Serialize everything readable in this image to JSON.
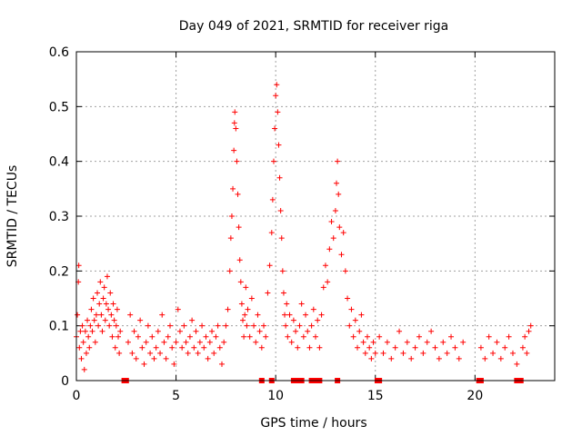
{
  "chart_data": {
    "type": "scatter",
    "title": "Day 049 of 2021, SRMTID for receiver riga",
    "xlabel": "GPS time / hours",
    "ylabel": "SRMTID / TECUs",
    "xlim": [
      0,
      24
    ],
    "ylim": [
      0,
      0.6
    ],
    "x_ticks": [
      0,
      5,
      10,
      15,
      20
    ],
    "x_tick_labels": [
      "0",
      "5",
      "10",
      "15",
      "20"
    ],
    "y_ticks": [
      0,
      0.1,
      0.2,
      0.3,
      0.4,
      0.5,
      0.6
    ],
    "y_tick_labels": [
      "0",
      "0.1",
      "0.2",
      "0.3",
      "0.4",
      "0.5",
      "0.6"
    ],
    "grid": true,
    "marker": "plus",
    "color": "#ff0000",
    "series": [
      {
        "name": "SRMTID",
        "points": [
          [
            0.0,
            0.08
          ],
          [
            0.05,
            0.12
          ],
          [
            0.1,
            0.18
          ],
          [
            0.12,
            0.21
          ],
          [
            0.15,
            0.06
          ],
          [
            0.2,
            0.09
          ],
          [
            0.25,
            0.04
          ],
          [
            0.3,
            0.1
          ],
          [
            0.35,
            0.07
          ],
          [
            0.4,
            0.02
          ],
          [
            0.45,
            0.09
          ],
          [
            0.5,
            0.05
          ],
          [
            0.55,
            0.11
          ],
          [
            0.6,
            0.08
          ],
          [
            0.65,
            0.06
          ],
          [
            0.7,
            0.1
          ],
          [
            0.75,
            0.13
          ],
          [
            0.8,
            0.09
          ],
          [
            0.85,
            0.15
          ],
          [
            0.9,
            0.11
          ],
          [
            0.95,
            0.07
          ],
          [
            1.0,
            0.12
          ],
          [
            1.05,
            0.16
          ],
          [
            1.1,
            0.1
          ],
          [
            1.15,
            0.14
          ],
          [
            1.2,
            0.18
          ],
          [
            1.25,
            0.12
          ],
          [
            1.3,
            0.09
          ],
          [
            1.35,
            0.15
          ],
          [
            1.4,
            0.17
          ],
          [
            1.45,
            0.11
          ],
          [
            1.5,
            0.14
          ],
          [
            1.55,
            0.19
          ],
          [
            1.6,
            0.13
          ],
          [
            1.65,
            0.1
          ],
          [
            1.7,
            0.16
          ],
          [
            1.75,
            0.12
          ],
          [
            1.8,
            0.08
          ],
          [
            1.85,
            0.14
          ],
          [
            1.9,
            0.11
          ],
          [
            1.95,
            0.06
          ],
          [
            2.0,
            0.1
          ],
          [
            2.05,
            0.13
          ],
          [
            2.1,
            0.08
          ],
          [
            2.15,
            0.05
          ],
          [
            2.2,
            0.09
          ],
          [
            2.6,
            0.07
          ],
          [
            2.7,
            0.12
          ],
          [
            2.8,
            0.05
          ],
          [
            2.9,
            0.09
          ],
          [
            3.0,
            0.04
          ],
          [
            3.1,
            0.08
          ],
          [
            3.2,
            0.11
          ],
          [
            3.3,
            0.06
          ],
          [
            3.4,
            0.03
          ],
          [
            3.5,
            0.07
          ],
          [
            3.6,
            0.1
          ],
          [
            3.7,
            0.05
          ],
          [
            3.8,
            0.08
          ],
          [
            3.9,
            0.04
          ],
          [
            4.0,
            0.06
          ],
          [
            4.1,
            0.09
          ],
          [
            4.2,
            0.05
          ],
          [
            4.3,
            0.12
          ],
          [
            4.4,
            0.07
          ],
          [
            4.5,
            0.04
          ],
          [
            4.6,
            0.08
          ],
          [
            4.7,
            0.1
          ],
          [
            4.8,
            0.06
          ],
          [
            4.9,
            0.03
          ],
          [
            5.0,
            0.07
          ],
          [
            5.1,
            0.13
          ],
          [
            5.2,
            0.09
          ],
          [
            5.3,
            0.06
          ],
          [
            5.4,
            0.1
          ],
          [
            5.5,
            0.07
          ],
          [
            5.6,
            0.05
          ],
          [
            5.7,
            0.08
          ],
          [
            5.8,
            0.11
          ],
          [
            5.9,
            0.06
          ],
          [
            6.0,
            0.09
          ],
          [
            6.1,
            0.05
          ],
          [
            6.2,
            0.07
          ],
          [
            6.3,
            0.1
          ],
          [
            6.4,
            0.06
          ],
          [
            6.5,
            0.08
          ],
          [
            6.6,
            0.04
          ],
          [
            6.7,
            0.07
          ],
          [
            6.8,
            0.09
          ],
          [
            6.9,
            0.05
          ],
          [
            7.0,
            0.08
          ],
          [
            7.1,
            0.1
          ],
          [
            7.2,
            0.06
          ],
          [
            7.3,
            0.03
          ],
          [
            7.4,
            0.07
          ],
          [
            7.5,
            0.1
          ],
          [
            7.6,
            0.13
          ],
          [
            7.7,
            0.2
          ],
          [
            7.75,
            0.26
          ],
          [
            7.8,
            0.3
          ],
          [
            7.85,
            0.35
          ],
          [
            7.9,
            0.42
          ],
          [
            7.93,
            0.47
          ],
          [
            7.95,
            0.49
          ],
          [
            8.0,
            0.46
          ],
          [
            8.05,
            0.4
          ],
          [
            8.1,
            0.34
          ],
          [
            8.15,
            0.28
          ],
          [
            8.2,
            0.22
          ],
          [
            8.25,
            0.18
          ],
          [
            8.3,
            0.14
          ],
          [
            8.35,
            0.11
          ],
          [
            8.4,
            0.08
          ],
          [
            8.45,
            0.12
          ],
          [
            8.5,
            0.17
          ],
          [
            8.55,
            0.1
          ],
          [
            8.6,
            0.13
          ],
          [
            8.7,
            0.08
          ],
          [
            8.8,
            0.15
          ],
          [
            8.9,
            0.1
          ],
          [
            9.0,
            0.07
          ],
          [
            9.1,
            0.12
          ],
          [
            9.2,
            0.09
          ],
          [
            9.3,
            0.06
          ],
          [
            9.4,
            0.1
          ],
          [
            9.5,
            0.08
          ],
          [
            9.6,
            0.16
          ],
          [
            9.7,
            0.21
          ],
          [
            9.8,
            0.27
          ],
          [
            9.85,
            0.33
          ],
          [
            9.9,
            0.4
          ],
          [
            9.95,
            0.46
          ],
          [
            10.0,
            0.52
          ],
          [
            10.05,
            0.54
          ],
          [
            10.1,
            0.49
          ],
          [
            10.15,
            0.43
          ],
          [
            10.2,
            0.37
          ],
          [
            10.25,
            0.31
          ],
          [
            10.3,
            0.26
          ],
          [
            10.35,
            0.2
          ],
          [
            10.4,
            0.16
          ],
          [
            10.45,
            0.12
          ],
          [
            10.5,
            0.1
          ],
          [
            10.55,
            0.14
          ],
          [
            10.6,
            0.08
          ],
          [
            10.7,
            0.12
          ],
          [
            10.8,
            0.07
          ],
          [
            10.9,
            0.11
          ],
          [
            11.0,
            0.09
          ],
          [
            11.1,
            0.06
          ],
          [
            11.2,
            0.1
          ],
          [
            11.3,
            0.14
          ],
          [
            11.4,
            0.08
          ],
          [
            11.5,
            0.12
          ],
          [
            11.6,
            0.09
          ],
          [
            11.7,
            0.06
          ],
          [
            11.8,
            0.1
          ],
          [
            11.9,
            0.13
          ],
          [
            12.0,
            0.08
          ],
          [
            12.1,
            0.11
          ],
          [
            12.2,
            0.06
          ],
          [
            12.3,
            0.12
          ],
          [
            12.4,
            0.17
          ],
          [
            12.5,
            0.21
          ],
          [
            12.6,
            0.18
          ],
          [
            12.7,
            0.24
          ],
          [
            12.8,
            0.29
          ],
          [
            12.9,
            0.26
          ],
          [
            13.0,
            0.31
          ],
          [
            13.05,
            0.36
          ],
          [
            13.1,
            0.4
          ],
          [
            13.15,
            0.34
          ],
          [
            13.2,
            0.28
          ],
          [
            13.3,
            0.23
          ],
          [
            13.4,
            0.27
          ],
          [
            13.5,
            0.2
          ],
          [
            13.6,
            0.15
          ],
          [
            13.7,
            0.1
          ],
          [
            13.8,
            0.13
          ],
          [
            13.9,
            0.08
          ],
          [
            14.0,
            0.11
          ],
          [
            14.1,
            0.06
          ],
          [
            14.2,
            0.09
          ],
          [
            14.3,
            0.12
          ],
          [
            14.4,
            0.07
          ],
          [
            14.5,
            0.05
          ],
          [
            14.6,
            0.08
          ],
          [
            14.7,
            0.06
          ],
          [
            14.8,
            0.04
          ],
          [
            14.9,
            0.07
          ],
          [
            15.0,
            0.05
          ],
          [
            15.2,
            0.08
          ],
          [
            15.4,
            0.05
          ],
          [
            15.6,
            0.07
          ],
          [
            15.8,
            0.04
          ],
          [
            16.0,
            0.06
          ],
          [
            16.2,
            0.09
          ],
          [
            16.4,
            0.05
          ],
          [
            16.6,
            0.07
          ],
          [
            16.8,
            0.04
          ],
          [
            17.0,
            0.06
          ],
          [
            17.2,
            0.08
          ],
          [
            17.4,
            0.05
          ],
          [
            17.6,
            0.07
          ],
          [
            17.8,
            0.09
          ],
          [
            18.0,
            0.06
          ],
          [
            18.2,
            0.04
          ],
          [
            18.4,
            0.07
          ],
          [
            18.6,
            0.05
          ],
          [
            18.8,
            0.08
          ],
          [
            19.0,
            0.06
          ],
          [
            19.2,
            0.04
          ],
          [
            19.4,
            0.07
          ],
          [
            20.3,
            0.06
          ],
          [
            20.5,
            0.04
          ],
          [
            20.7,
            0.08
          ],
          [
            20.9,
            0.05
          ],
          [
            21.1,
            0.07
          ],
          [
            21.3,
            0.04
          ],
          [
            21.5,
            0.06
          ],
          [
            21.7,
            0.08
          ],
          [
            21.9,
            0.05
          ],
          [
            22.1,
            0.03
          ],
          [
            22.4,
            0.06
          ],
          [
            22.5,
            0.08
          ],
          [
            22.6,
            0.05
          ],
          [
            22.7,
            0.09
          ],
          [
            22.8,
            0.1
          ]
        ]
      }
    ],
    "zero_markers_x": [
      2.4,
      2.5,
      9.3,
      9.8,
      10.9,
      11.1,
      11.3,
      11.8,
      12.0,
      12.2,
      13.1,
      15.1,
      15.2,
      20.2,
      20.3,
      22.1,
      22.2,
      22.3
    ]
  }
}
